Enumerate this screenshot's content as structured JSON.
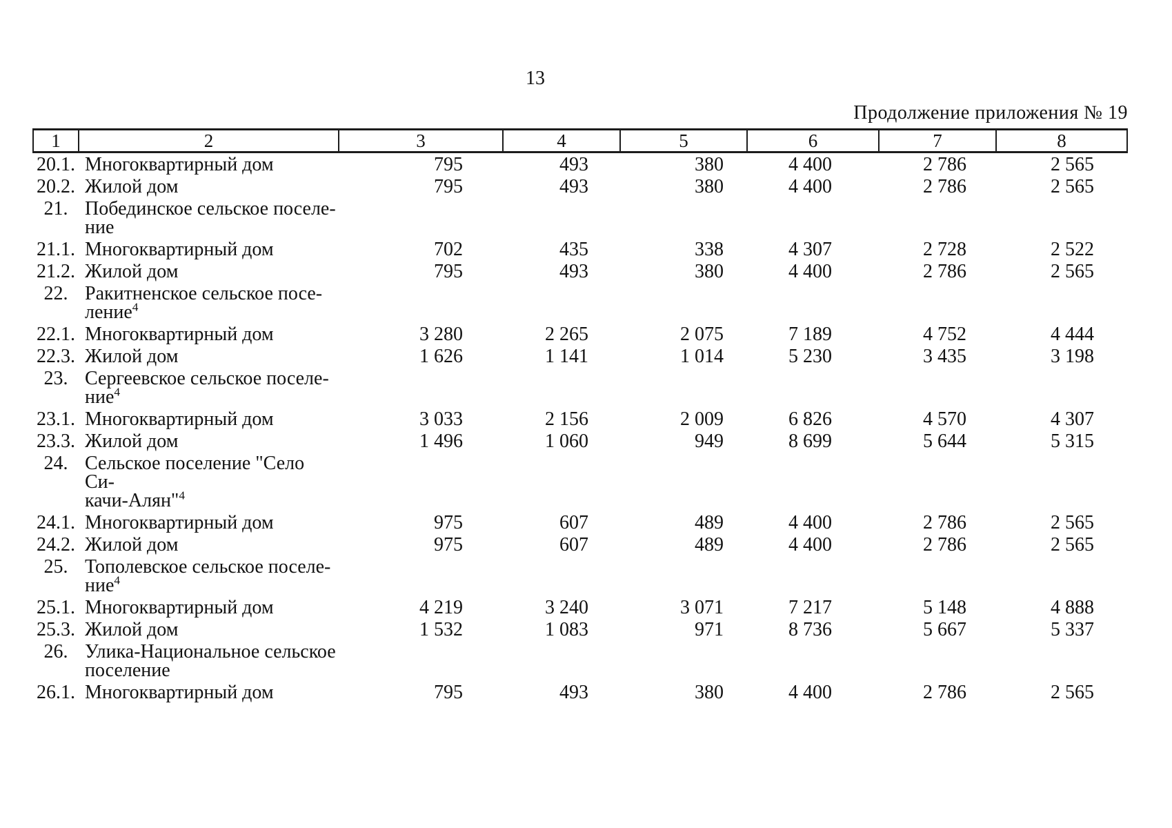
{
  "page": {
    "page_number": "13",
    "continuation_note": "Продолжение приложения № 19"
  },
  "table": {
    "column_headers": [
      "1",
      "2",
      "3",
      "4",
      "5",
      "6",
      "7",
      "8"
    ],
    "rows": [
      {
        "num": "20.1.",
        "name_lines": [
          "Многоквартирный дом"
        ],
        "sup": "",
        "values": [
          "795",
          "493",
          "380",
          "4 400",
          "2 786",
          "2 565"
        ]
      },
      {
        "num": "20.2.",
        "name_lines": [
          "Жилой дом"
        ],
        "sup": "",
        "values": [
          "795",
          "493",
          "380",
          "4 400",
          "2 786",
          "2 565"
        ]
      },
      {
        "num": "21.",
        "name_lines": [
          "Побединское сельское поселе-",
          "ние"
        ],
        "sup": "",
        "values": [
          "",
          "",
          "",
          "",
          "",
          ""
        ]
      },
      {
        "num": "21.1.",
        "name_lines": [
          "Многоквартирный дом"
        ],
        "sup": "",
        "values": [
          "702",
          "435",
          "338",
          "4 307",
          "2 728",
          "2 522"
        ]
      },
      {
        "num": "21.2.",
        "name_lines": [
          "Жилой дом"
        ],
        "sup": "",
        "values": [
          "795",
          "493",
          "380",
          "4 400",
          "2 786",
          "2 565"
        ]
      },
      {
        "num": "22.",
        "name_lines": [
          "Ракитненское сельское посе-",
          "ление"
        ],
        "sup": "4",
        "values": [
          "",
          "",
          "",
          "",
          "",
          ""
        ]
      },
      {
        "num": "22.1.",
        "name_lines": [
          "Многоквартирный дом"
        ],
        "sup": "",
        "values": [
          "3 280",
          "2 265",
          "2 075",
          "7 189",
          "4 752",
          "4 444"
        ]
      },
      {
        "num": "22.3.",
        "name_lines": [
          "Жилой дом"
        ],
        "sup": "",
        "values": [
          "1 626",
          "1 141",
          "1 014",
          "5 230",
          "3 435",
          "3 198"
        ]
      },
      {
        "num": "23.",
        "name_lines": [
          "Сергеевское сельское поселе-",
          "ние"
        ],
        "sup": "4",
        "values": [
          "",
          "",
          "",
          "",
          "",
          ""
        ]
      },
      {
        "num": "23.1.",
        "name_lines": [
          "Многоквартирный дом"
        ],
        "sup": "",
        "values": [
          "3 033",
          "2 156",
          "2 009",
          "6 826",
          "4 570",
          "4 307"
        ]
      },
      {
        "num": "23.3.",
        "name_lines": [
          "Жилой дом"
        ],
        "sup": "",
        "values": [
          "1 496",
          "1 060",
          "949",
          "8 699",
          "5 644",
          "5 315"
        ]
      },
      {
        "num": "24.",
        "name_lines": [
          "Сельское поселение \"Село Си-",
          "качи-Алян\""
        ],
        "sup": "4",
        "values": [
          "",
          "",
          "",
          "",
          "",
          ""
        ]
      },
      {
        "num": "24.1.",
        "name_lines": [
          "Многоквартирный дом"
        ],
        "sup": "",
        "values": [
          "975",
          "607",
          "489",
          "4 400",
          "2 786",
          "2 565"
        ]
      },
      {
        "num": "24.2.",
        "name_lines": [
          "Жилой дом"
        ],
        "sup": "",
        "values": [
          "975",
          "607",
          "489",
          "4 400",
          "2 786",
          "2 565"
        ]
      },
      {
        "num": "25.",
        "name_lines": [
          "Тополевское сельское поселе-",
          "ние"
        ],
        "sup": "4",
        "values": [
          "",
          "",
          "",
          "",
          "",
          ""
        ]
      },
      {
        "num": "25.1.",
        "name_lines": [
          "Многоквартирный дом"
        ],
        "sup": "",
        "values": [
          "4 219",
          "3 240",
          "3 071",
          "7 217",
          "5 148",
          "4 888"
        ]
      },
      {
        "num": "25.3.",
        "name_lines": [
          "Жилой дом"
        ],
        "sup": "",
        "values": [
          "1 532",
          "1 083",
          "971",
          "8 736",
          "5 667",
          "5 337"
        ]
      },
      {
        "num": "26.",
        "name_lines": [
          "Улика-Национальное сельское",
          "поселение"
        ],
        "sup": "",
        "values": [
          "",
          "",
          "",
          "",
          "",
          ""
        ]
      },
      {
        "num": "26.1.",
        "name_lines": [
          "Многоквартирный дом"
        ],
        "sup": "",
        "values": [
          "795",
          "493",
          "380",
          "4 400",
          "2 786",
          "2 565"
        ]
      }
    ]
  }
}
